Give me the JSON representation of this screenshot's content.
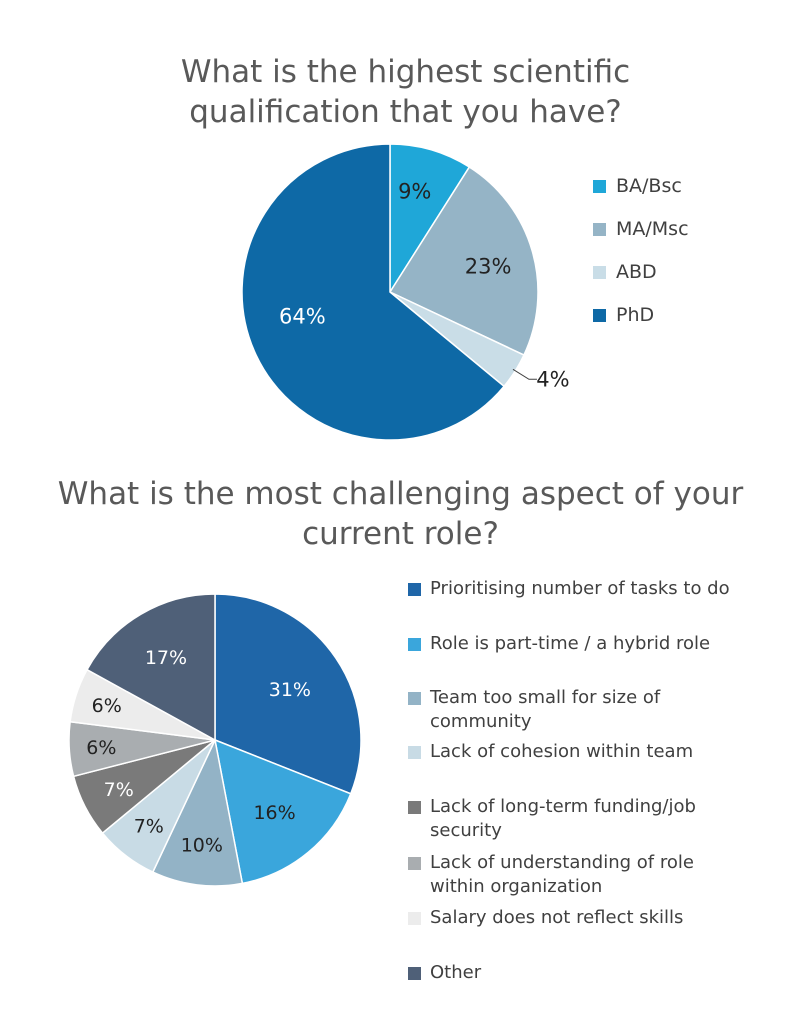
{
  "chart_data": [
    {
      "type": "pie",
      "title": "What is the highest scientific qualification that you have?",
      "categories": [
        "BA/Bsc",
        "MA/Msc",
        "ABD",
        "PhD"
      ],
      "values": [
        9,
        23,
        4,
        64
      ],
      "data_labels": [
        "9%",
        "23%",
        "4%",
        "64%"
      ],
      "colors": [
        "#1fa7d8",
        "#95b4c6",
        "#c9dde7",
        "#0e69a6"
      ],
      "label_colors": [
        "#222222",
        "#222222",
        "#222222",
        "#ffffff"
      ],
      "legend_position": "right"
    },
    {
      "type": "pie",
      "title": "What is the most challenging aspect of your current role?",
      "categories": [
        "Prioritising number of tasks to do",
        "Role is part-time / a hybrid role",
        "Team too small for size of community",
        "Lack of cohesion within team",
        "Lack of long-term funding/job security",
        "Lack of understanding of role within organization",
        "Salary does not reflect skills",
        "Other"
      ],
      "legend_lines": [
        [
          "Prioritising number of tasks to do"
        ],
        [
          "Role is part-time / a hybrid role"
        ],
        [
          "Team too small for size of",
          "community"
        ],
        [
          "Lack of cohesion within team"
        ],
        [
          "Lack of long-term funding/job",
          "security"
        ],
        [
          "Lack of understanding of role",
          "within organization"
        ],
        [
          "Salary does not reflect skills"
        ],
        [
          "Other"
        ]
      ],
      "values": [
        31,
        16,
        10,
        7,
        7,
        6,
        6,
        17
      ],
      "data_labels": [
        "31%",
        "16%",
        "10%",
        "7%",
        "7%",
        "6%",
        "6%",
        "17%"
      ],
      "colors": [
        "#1f66a8",
        "#3aa6dc",
        "#93b3c6",
        "#c8dbe5",
        "#7a7a7a",
        "#a9adb0",
        "#ececec",
        "#4f6078"
      ],
      "label_colors": [
        "#ffffff",
        "#222222",
        "#222222",
        "#222222",
        "#ffffff",
        "#222222",
        "#222222",
        "#ffffff"
      ],
      "legend_position": "right"
    }
  ]
}
